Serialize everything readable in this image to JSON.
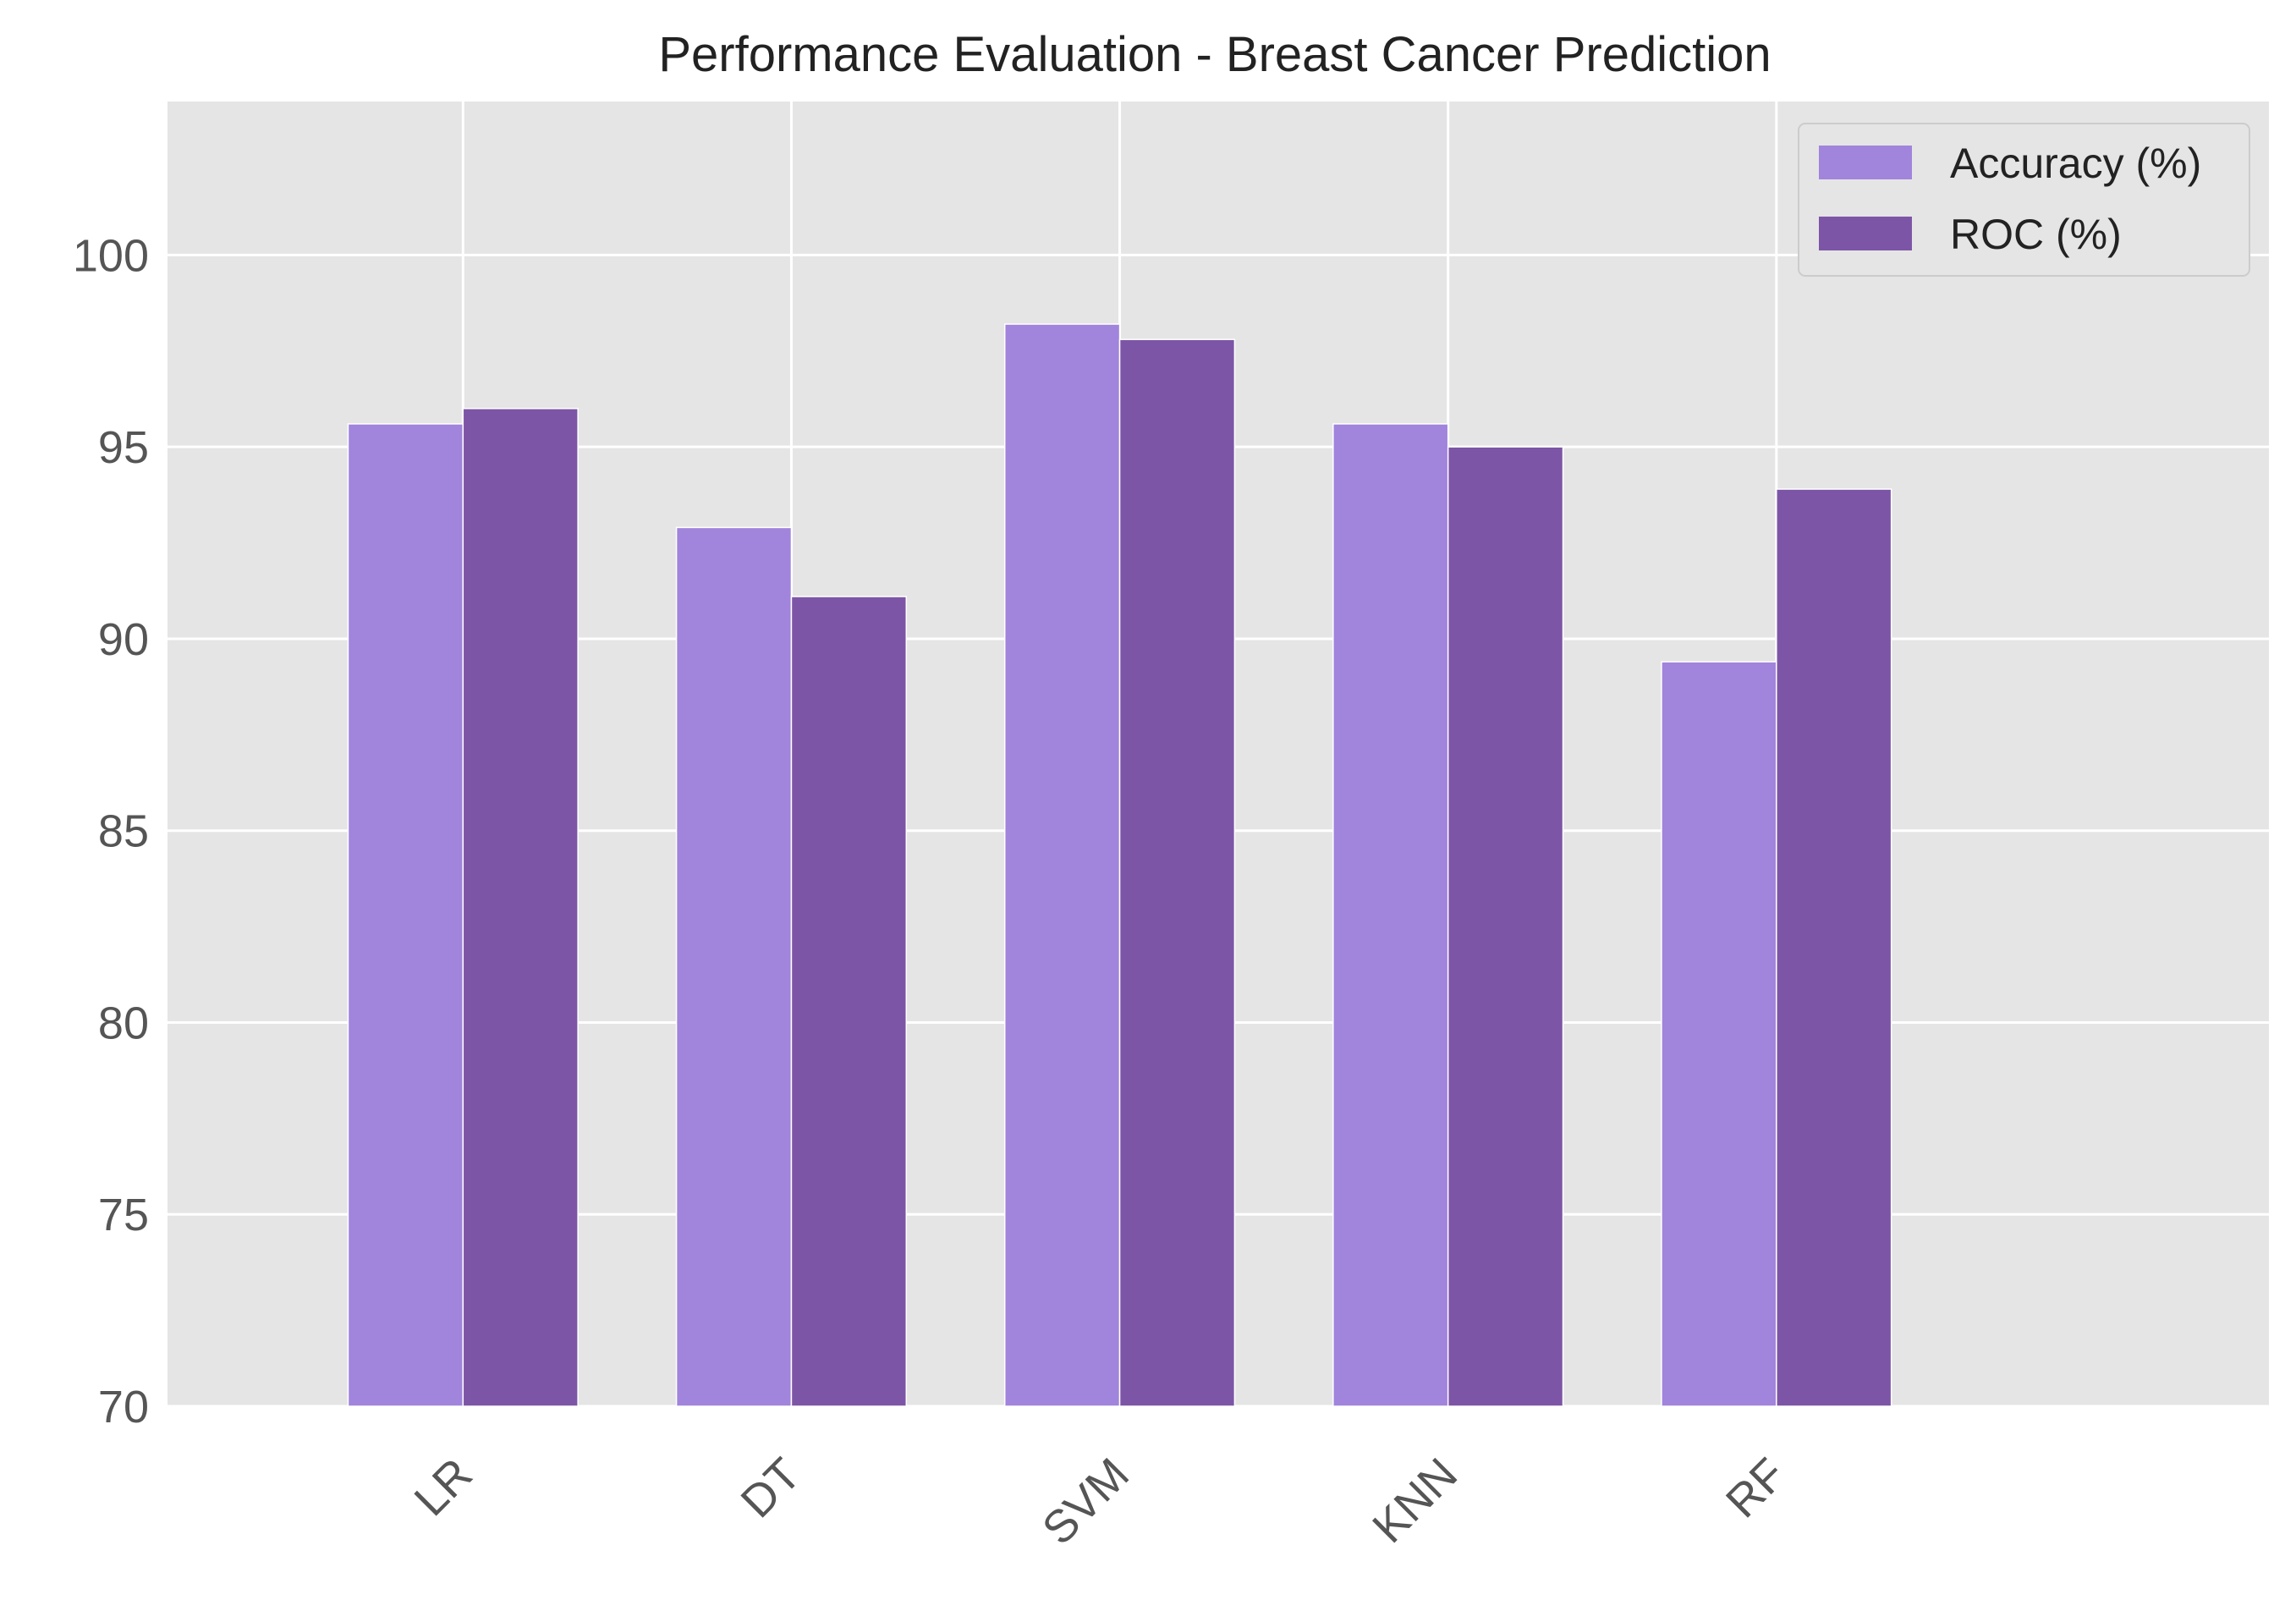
{
  "chart_data": {
    "type": "bar",
    "title": "Performance Evaluation - Breast Cancer Prediction",
    "xlabel": "",
    "ylabel": "",
    "categories": [
      "LR",
      "DT",
      "SVM",
      "KNN",
      "RF"
    ],
    "series": [
      {
        "name": "Accuracy (%)",
        "values": [
          95.6,
          92.9,
          98.2,
          95.6,
          89.4
        ],
        "color": "#a184dc"
      },
      {
        "name": "ROC (%)",
        "values": [
          96.0,
          91.1,
          97.8,
          95.0,
          93.9
        ],
        "color": "#7d55a6"
      }
    ],
    "ylim": [
      70,
      104
    ],
    "yticks": [
      70,
      75,
      80,
      85,
      90,
      95,
      100
    ],
    "x_tick_rotation": 45,
    "grid": true,
    "legend_position": "top-right",
    "plot_background": "#e5e5e5",
    "grid_color": "#ffffff"
  }
}
